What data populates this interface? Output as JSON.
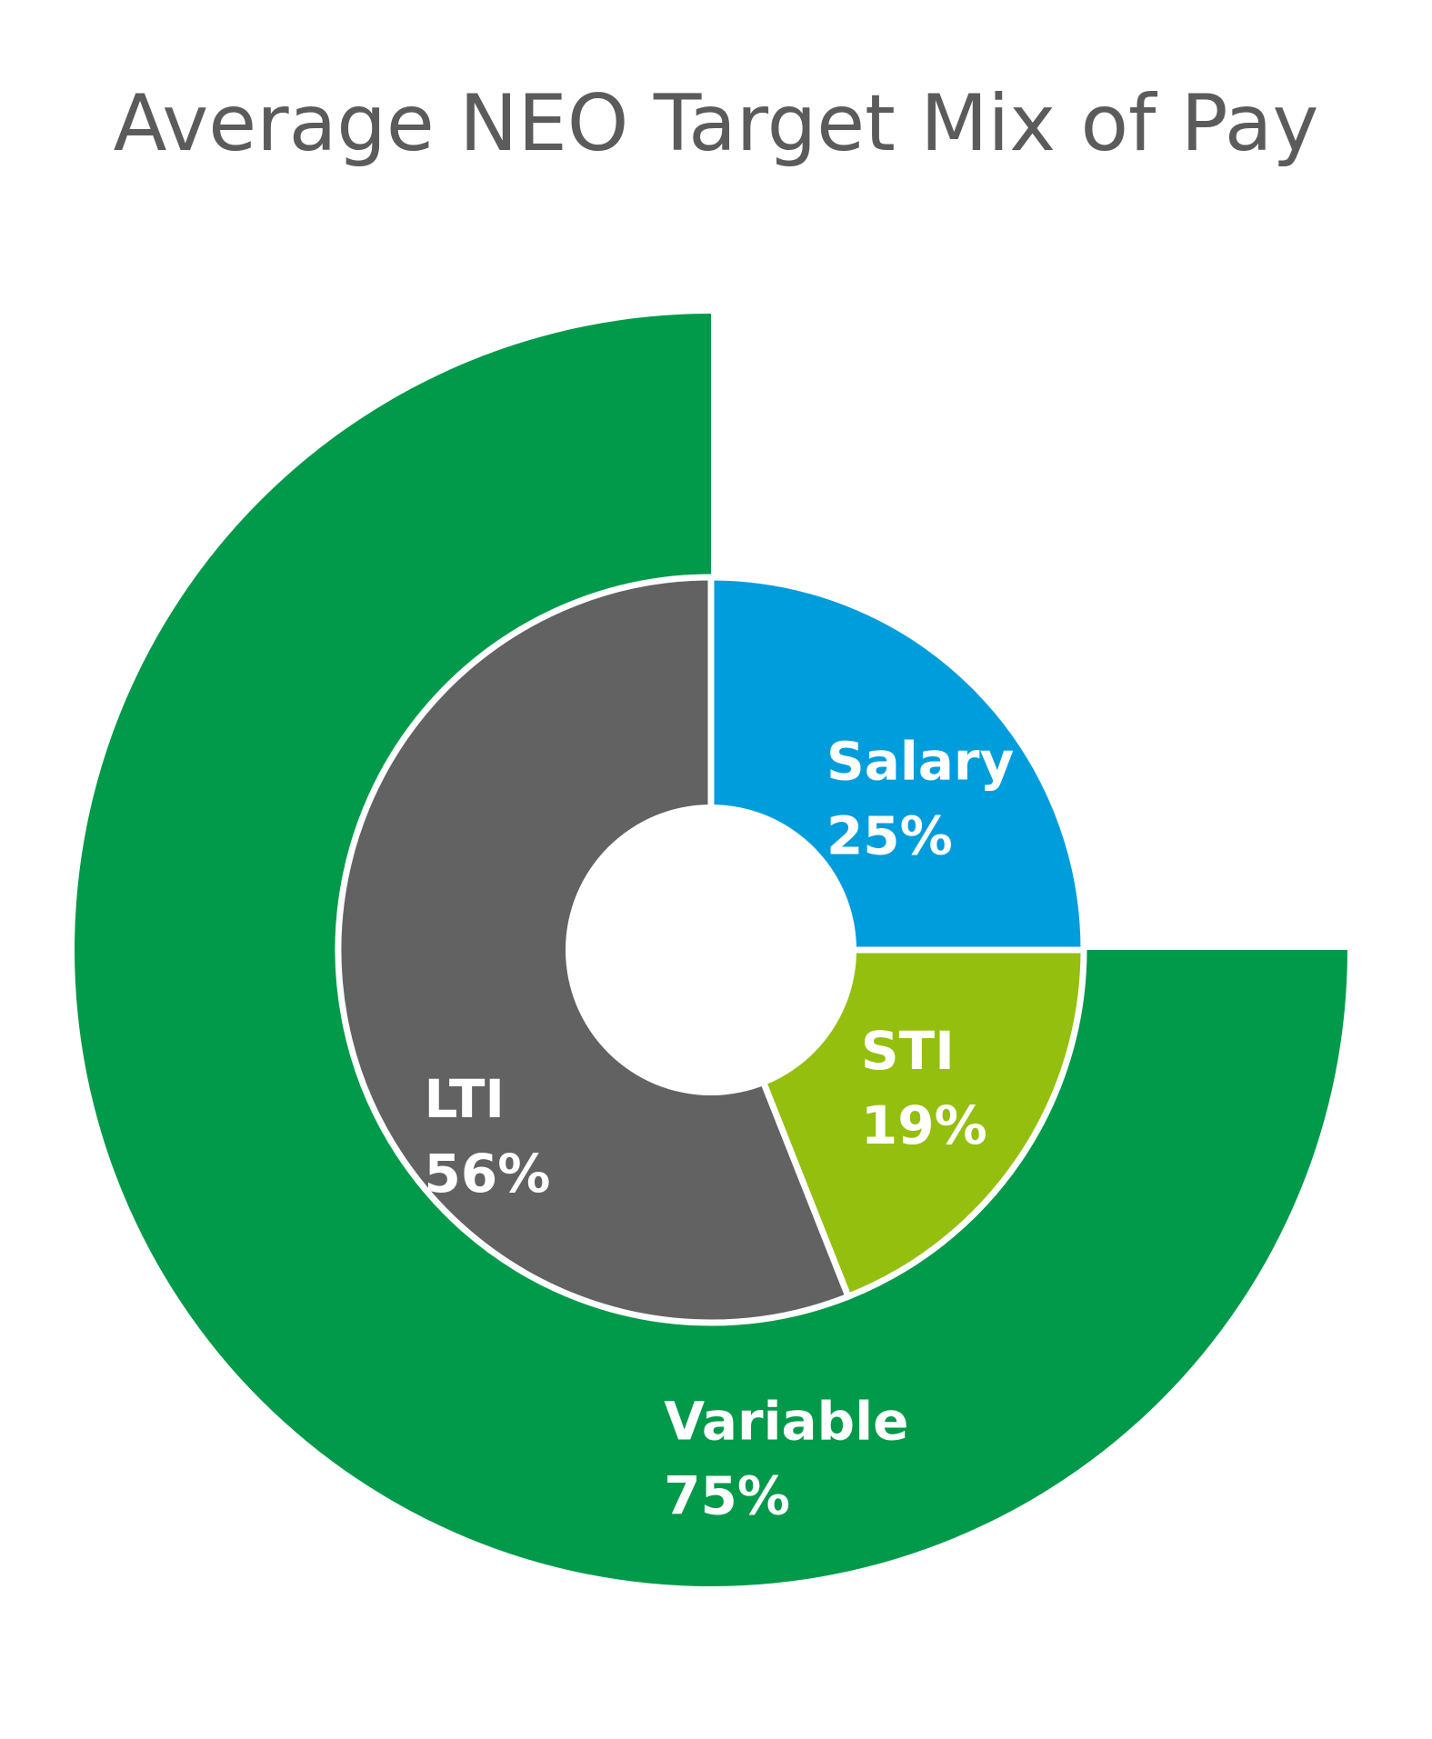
{
  "chart_data": {
    "type": "pie",
    "title": "Average NEO Target Mix of Pay",
    "outer_ring": [
      {
        "label": "Variable",
        "value": 75,
        "value_label": "75%",
        "color": "#009a4a"
      }
    ],
    "inner_ring": [
      {
        "label": "Salary",
        "value": 25,
        "value_label": "25%",
        "color": "#009ddd"
      },
      {
        "label": "STI",
        "value": 19,
        "value_label": "19%",
        "color": "#95bf0f"
      },
      {
        "label": "LTI",
        "value": 56,
        "value_label": "56%",
        "color": "#626262"
      }
    ]
  }
}
